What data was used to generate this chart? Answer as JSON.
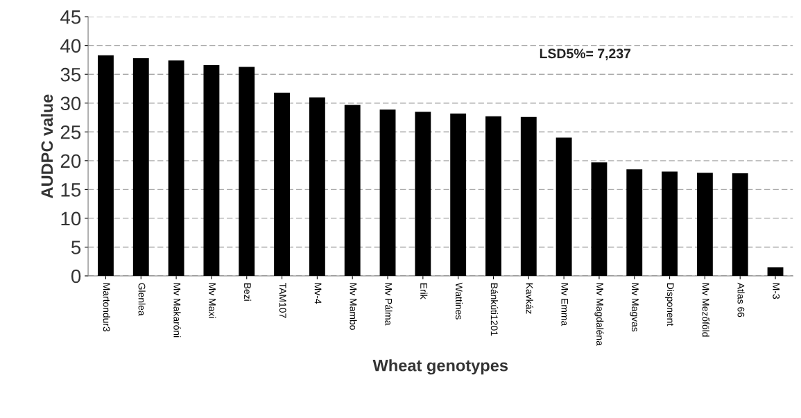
{
  "chart_data": {
    "type": "bar",
    "xlabel": "Wheat genotypes",
    "ylabel": "AUDPC value",
    "categories": [
      "Martondur3",
      "Glenlea",
      "Mv Makaróni",
      "Mv Maxi",
      "Bezi",
      "TAM107",
      "Mv-4",
      "Mv Mambo",
      "Mv Pálma",
      "Erik",
      "Wattines",
      "Bánkúti1201",
      "Kavkáz",
      "Mv Emma",
      "Mv Magdaléna",
      "Mv Magvas",
      "Disponent",
      "Mv Mezőföld",
      "Atlas 66",
      "M-3"
    ],
    "values": [
      38.3,
      37.8,
      37.4,
      36.6,
      36.3,
      31.8,
      31.0,
      29.7,
      28.9,
      28.5,
      28.2,
      27.7,
      27.6,
      24.0,
      19.7,
      18.5,
      18.1,
      17.9,
      17.8,
      1.5
    ],
    "color": "#000000",
    "ylim": [
      0,
      45
    ],
    "yticks": [
      0,
      5,
      10,
      15,
      20,
      25,
      30,
      35,
      40,
      45
    ],
    "grid": "y",
    "annotations": [
      "LSD5%= 7,237"
    ]
  }
}
